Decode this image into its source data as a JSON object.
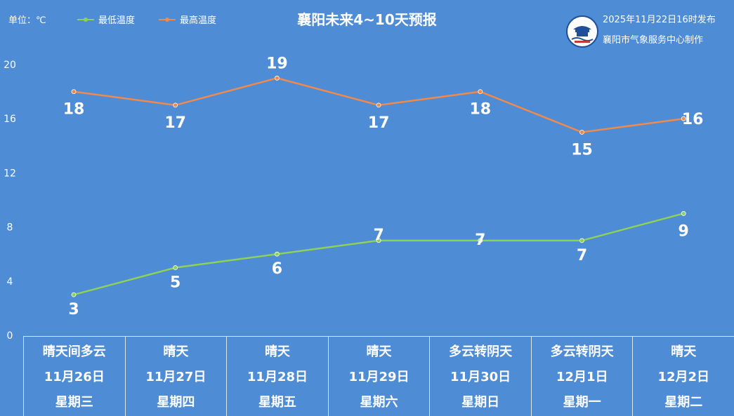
{
  "header": {
    "unit_label": "单位：℃",
    "title": "襄阳未来4~10天预报",
    "publish_time": "2025年11月22日16时发布",
    "producer": "襄阳市气象服务中心制作"
  },
  "colors": {
    "background": "#4f8cd6",
    "low_series": "#8ed158",
    "high_series": "#f08a4b"
  },
  "legend": [
    {
      "name": "最低温度",
      "color": "#8ed158"
    },
    {
      "name": "最高温度",
      "color": "#f08a4b"
    }
  ],
  "days": [
    {
      "weather": "晴天间多云",
      "date": "11月26日",
      "weekday": "星期三"
    },
    {
      "weather": "晴天",
      "date": "11月27日",
      "weekday": "星期四"
    },
    {
      "weather": "晴天",
      "date": "11月28日",
      "weekday": "星期五"
    },
    {
      "weather": "晴天",
      "date": "11月29日",
      "weekday": "星期六"
    },
    {
      "weather": "多云转阴天",
      "date": "11月30日",
      "weekday": "星期日"
    },
    {
      "weather": "多云转阴天",
      "date": "12月1日",
      "weekday": "星期一"
    },
    {
      "weather": "晴天",
      "date": "12月2日",
      "weekday": "星期二"
    }
  ],
  "chart_data": {
    "type": "line",
    "title": "襄阳未来4~10天预报",
    "categories": [
      "11月26日",
      "11月27日",
      "11月28日",
      "11月29日",
      "11月30日",
      "12月1日",
      "12月2日"
    ],
    "series": [
      {
        "name": "最低温度",
        "values": [
          3,
          5,
          6,
          7,
          7,
          7,
          9
        ],
        "color": "#8ed158"
      },
      {
        "name": "最高温度",
        "values": [
          18,
          17,
          19,
          17,
          18,
          15,
          16
        ],
        "color": "#f08a4b"
      }
    ],
    "ylim": [
      0,
      20
    ],
    "yticks": [
      0,
      4,
      8,
      12,
      16,
      20
    ],
    "grid": false,
    "legend_position": "top-left"
  }
}
